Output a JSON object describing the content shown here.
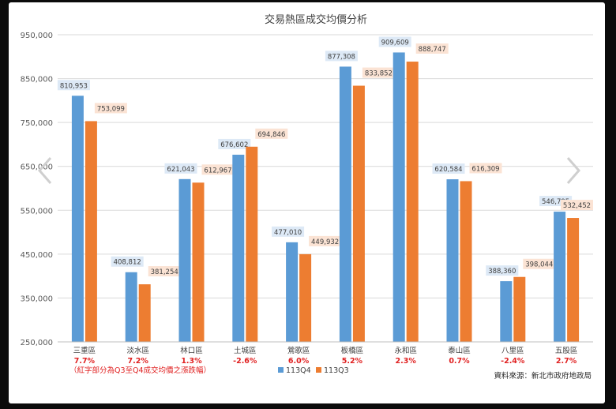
{
  "chart_data": {
    "type": "bar",
    "title": "交易熱區成交均價分析",
    "categories": [
      "三重區",
      "淡水區",
      "林口區",
      "土城區",
      "鶯歌區",
      "板橋區",
      "永和區",
      "泰山區",
      "八里區",
      "五股區"
    ],
    "series": [
      {
        "name": "113Q4",
        "color": "#5b9bd5",
        "values": [
          810953,
          408812,
          621043,
          676602,
          477010,
          877308,
          909609,
          620584,
          388360,
          546795
        ],
        "labels": [
          "810,953",
          "408,812",
          "621,043",
          "676,602",
          "477,010",
          "877,308",
          "909,609",
          "620,584",
          "388,360",
          "546,795"
        ]
      },
      {
        "name": "113Q3",
        "color": "#ed7d31",
        "values": [
          753099,
          381254,
          612967,
          694846,
          449932,
          833852,
          888747,
          616309,
          398044,
          532452
        ],
        "labels": [
          "753,099",
          "381,254",
          "612,967",
          "694,846",
          "449,932",
          "833,852",
          "888,747",
          "616,309",
          "398,044",
          "532,452"
        ]
      }
    ],
    "changes": [
      "7.7%",
      "7.2%",
      "1.3%",
      "-2.6%",
      "6.0%",
      "5.2%",
      "2.3%",
      "0.7%",
      "-2.4%",
      "2.7%"
    ],
    "ylim": [
      250000,
      950000
    ],
    "yticks": [
      "250,000",
      "350,000",
      "450,000",
      "550,000",
      "650,000",
      "750,000",
      "850,000",
      "950,000"
    ],
    "ytick_values": [
      250000,
      350000,
      450000,
      550000,
      650000,
      750000,
      850000,
      950000
    ],
    "grid": true,
    "legend_position": "bottom",
    "note": "（紅字部分為Q3至Q4成交均價之漲跌幅）",
    "source": "資料來源：新北市政府地政局"
  },
  "colors": {
    "q4": "#5b9bd5",
    "q3": "#ed7d31",
    "change": "#e02020",
    "grid": "#d9d9d9"
  },
  "nav": {
    "prev_icon": "chevron-left-icon",
    "next_icon": "chevron-right-icon"
  }
}
